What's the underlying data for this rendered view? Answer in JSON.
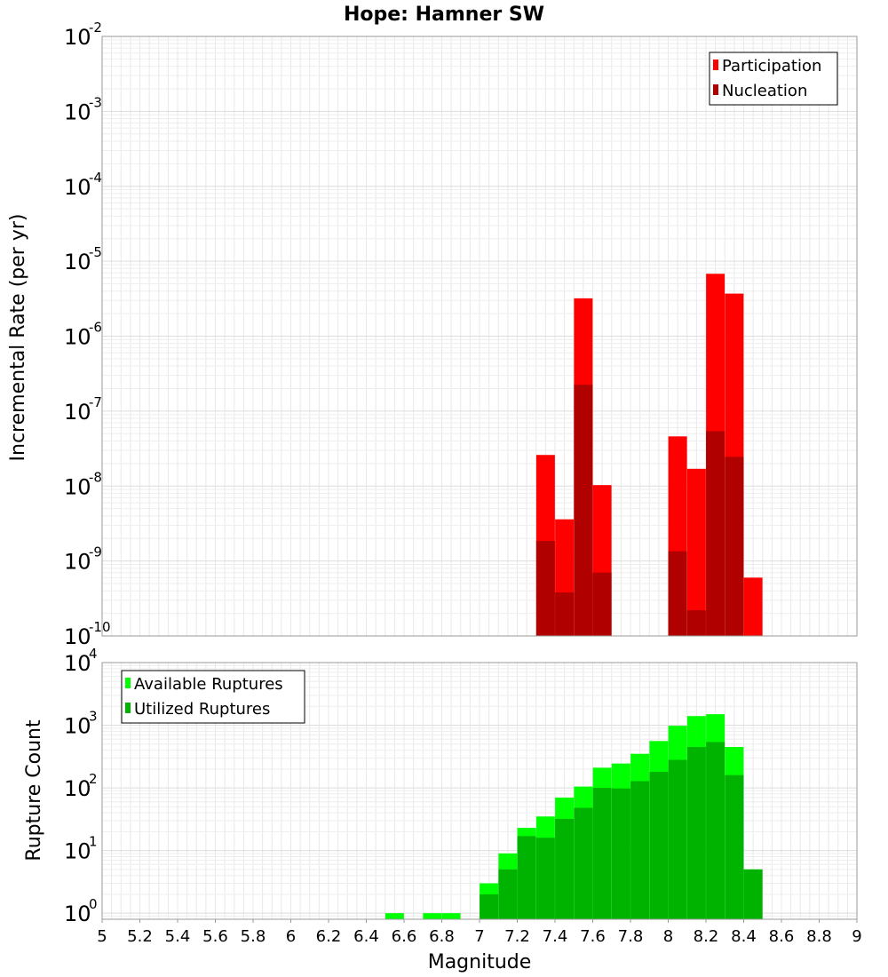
{
  "chart_data": [
    {
      "type": "bar",
      "title": "Hope: Hamner SW",
      "xlabel": "",
      "ylabel": "Incremental Rate (per yr)",
      "yscale": "log",
      "xlim": [
        5,
        9
      ],
      "ylim": [
        1e-10,
        0.01
      ],
      "grid": true,
      "legend_position": "top-right",
      "ytick_exponents": [
        "-2",
        "-3",
        "-4",
        "-5",
        "-6",
        "-7",
        "-8",
        "-9",
        "-10"
      ],
      "x": [
        7.35,
        7.45,
        7.55,
        7.65,
        8.05,
        8.15,
        8.25,
        8.35,
        8.45
      ],
      "series": [
        {
          "name": "Participation",
          "color": "#ff0000",
          "values": [
            2.6e-08,
            3.6e-09,
            3.2e-06,
            1.03e-08,
            4.6e-08,
            1.7e-08,
            6.8e-06,
            3.7e-06,
            6e-10
          ]
        },
        {
          "name": "Nucleation",
          "color": "#b00000",
          "values": [
            1.85e-09,
            3.8e-10,
            2.25e-07,
            7e-10,
            1.35e-09,
            2.2e-10,
            5.4e-08,
            2.45e-08,
            null
          ]
        }
      ]
    },
    {
      "type": "bar",
      "title": "",
      "xlabel": "Magnitude",
      "ylabel": "Rupture Count",
      "yscale": "log",
      "xlim": [
        5,
        9
      ],
      "ylim": [
        0.8,
        10000
      ],
      "grid": true,
      "legend_position": "top-left",
      "xtick_labels": [
        "5",
        "5.2",
        "5.4",
        "5.6",
        "5.8",
        "6",
        "6.2",
        "6.4",
        "6.6",
        "6.8",
        "7",
        "7.2",
        "7.4",
        "7.6",
        "7.8",
        "8",
        "8.2",
        "8.4",
        "8.6",
        "8.8",
        "9"
      ],
      "ytick_exponents": [
        "4",
        "3",
        "2",
        "1",
        "0"
      ],
      "x": [
        6.55,
        6.75,
        6.85,
        7.05,
        7.15,
        7.25,
        7.35,
        7.45,
        7.55,
        7.65,
        7.75,
        7.85,
        7.95,
        8.05,
        8.15,
        8.25,
        8.35,
        8.45
      ],
      "series": [
        {
          "name": "Available Ruptures",
          "color": "#00ff00",
          "values": [
            1,
            1,
            1,
            3,
            9,
            23,
            35,
            70,
            105,
            210,
            245,
            350,
            560,
            980,
            1400,
            1500,
            450,
            5
          ]
        },
        {
          "name": "Utilized Ruptures",
          "color": "#00b300",
          "values": [
            null,
            null,
            null,
            2,
            5,
            17,
            16,
            32,
            48,
            100,
            98,
            128,
            180,
            280,
            450,
            540,
            160,
            5
          ]
        }
      ]
    }
  ]
}
